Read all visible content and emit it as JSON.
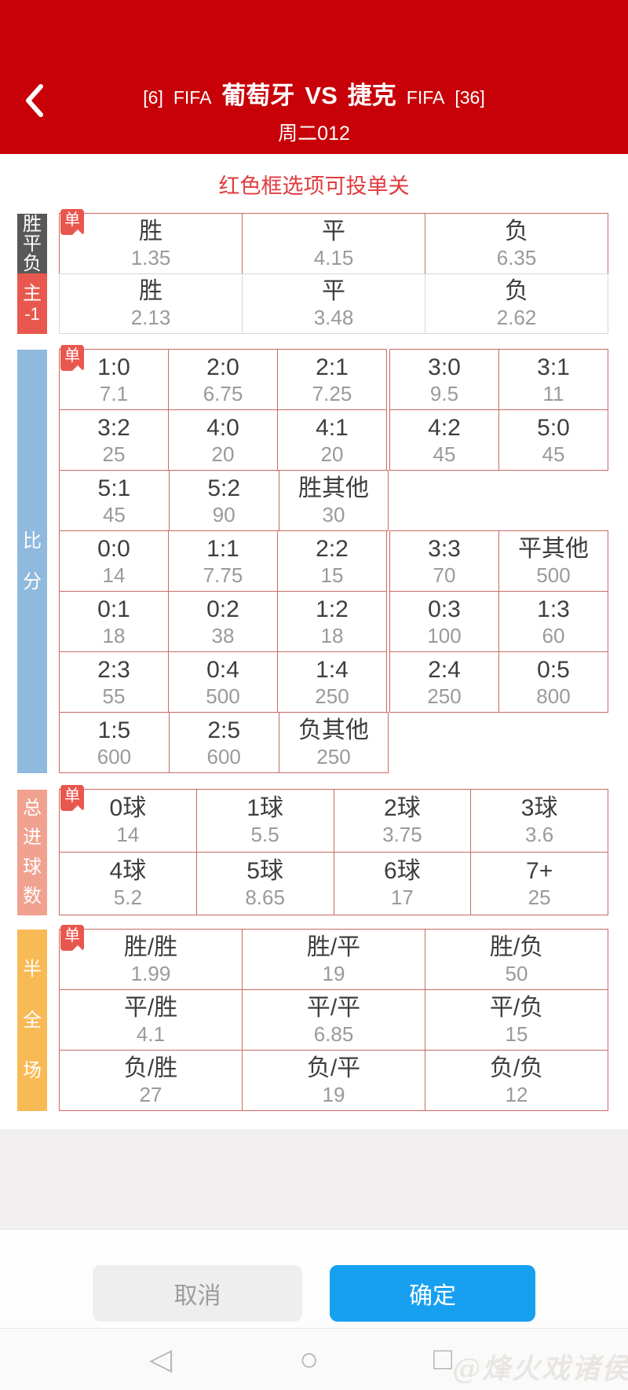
{
  "badge_label": "单",
  "header": {
    "title_prefix": "[6]",
    "league_left": "FIFA",
    "home_team": "葡萄牙",
    "vs": "VS",
    "away_team": "捷克",
    "league_right": "FIFA",
    "title_suffix": "[36]",
    "match_no": "周二012"
  },
  "hint": "红色框选项可投单关",
  "sections": {
    "spf": {
      "name": "胜平负",
      "label_lines": [
        "胜",
        "平",
        "负"
      ],
      "rows": [
        [
          {
            "label": "胜",
            "odds": "1.35"
          },
          {
            "label": "平",
            "odds": "4.15"
          },
          {
            "label": "负",
            "odds": "6.35"
          }
        ]
      ]
    },
    "handicap": {
      "name": "主-1",
      "label_lines": [
        "主",
        "-1"
      ],
      "rows": [
        [
          {
            "label": "胜",
            "odds": "2.13"
          },
          {
            "label": "平",
            "odds": "3.48"
          },
          {
            "label": "负",
            "odds": "2.62"
          }
        ]
      ]
    },
    "score": {
      "name": "比分",
      "label_lines": [
        "比",
        "分"
      ],
      "rows": [
        [
          {
            "label": "1:0",
            "odds": "7.1"
          },
          {
            "label": "2:0",
            "odds": "6.75"
          },
          {
            "label": "2:1",
            "odds": "7.25"
          },
          {
            "label": "3:0",
            "odds": "9.5"
          },
          {
            "label": "3:1",
            "odds": "11"
          }
        ],
        [
          {
            "label": "3:2",
            "odds": "25"
          },
          {
            "label": "4:0",
            "odds": "20"
          },
          {
            "label": "4:1",
            "odds": "20"
          },
          {
            "label": "4:2",
            "odds": "45"
          },
          {
            "label": "5:0",
            "odds": "45"
          }
        ],
        [
          {
            "label": "5:1",
            "odds": "45"
          },
          {
            "label": "5:2",
            "odds": "90"
          },
          {
            "label": "胜其他",
            "odds": "30"
          },
          {
            "empty": true
          },
          {
            "empty": true
          }
        ],
        [
          {
            "label": "0:0",
            "odds": "14"
          },
          {
            "label": "1:1",
            "odds": "7.75"
          },
          {
            "label": "2:2",
            "odds": "15"
          },
          {
            "label": "3:3",
            "odds": "70"
          },
          {
            "label": "平其他",
            "odds": "500"
          }
        ],
        [
          {
            "label": "0:1",
            "odds": "18"
          },
          {
            "label": "0:2",
            "odds": "38"
          },
          {
            "label": "1:2",
            "odds": "18"
          },
          {
            "label": "0:3",
            "odds": "100"
          },
          {
            "label": "1:3",
            "odds": "60"
          }
        ],
        [
          {
            "label": "2:3",
            "odds": "55"
          },
          {
            "label": "0:4",
            "odds": "500"
          },
          {
            "label": "1:4",
            "odds": "250"
          },
          {
            "label": "2:4",
            "odds": "250"
          },
          {
            "label": "0:5",
            "odds": "800"
          }
        ],
        [
          {
            "label": "1:5",
            "odds": "600"
          },
          {
            "label": "2:5",
            "odds": "600"
          },
          {
            "label": "负其他",
            "odds": "250"
          },
          {
            "empty": true
          },
          {
            "empty": true
          }
        ]
      ]
    },
    "goals": {
      "name": "总进球数",
      "label_lines": [
        "总",
        "进",
        "球",
        "数"
      ],
      "rows": [
        [
          {
            "label": "0球",
            "odds": "14"
          },
          {
            "label": "1球",
            "odds": "5.5"
          },
          {
            "label": "2球",
            "odds": "3.75"
          },
          {
            "label": "3球",
            "odds": "3.6"
          }
        ],
        [
          {
            "label": "4球",
            "odds": "5.2"
          },
          {
            "label": "5球",
            "odds": "8.65"
          },
          {
            "label": "6球",
            "odds": "17"
          },
          {
            "label": "7+",
            "odds": "25"
          }
        ]
      ]
    },
    "htft": {
      "name": "半全场",
      "label_lines": [
        "半",
        "全",
        "场"
      ],
      "rows": [
        [
          {
            "label": "胜/胜",
            "odds": "1.99"
          },
          {
            "label": "胜/平",
            "odds": "19"
          },
          {
            "label": "胜/负",
            "odds": "50"
          }
        ],
        [
          {
            "label": "平/胜",
            "odds": "4.1"
          },
          {
            "label": "平/平",
            "odds": "6.85"
          },
          {
            "label": "平/负",
            "odds": "15"
          }
        ],
        [
          {
            "label": "负/胜",
            "odds": "27"
          },
          {
            "label": "负/平",
            "odds": "19"
          },
          {
            "label": "负/负",
            "odds": "12"
          }
        ]
      ]
    }
  },
  "footer": {
    "cancel": "取消",
    "confirm": "确定"
  },
  "nav_icons": {
    "back": "◁",
    "home": "○",
    "recents": "□"
  },
  "watermark": "@烽火戏诸侯",
  "colors": {
    "header_red": "#c70107",
    "hint_red": "#e03b3e",
    "single_cell_border": "#c96b62",
    "handicap_cell_border": "#d7d7d7",
    "spf_label_bg": "#58585a",
    "handicap_label_bg": "#e8584e",
    "score_label_bg": "#90b9de",
    "goals_label_bg": "#f0a18f",
    "htft_label_bg": "#f8ba55",
    "badge_bg": "#e8574e",
    "confirm_blue": "#18a0f0",
    "cancel_bg": "#eeeeee"
  }
}
